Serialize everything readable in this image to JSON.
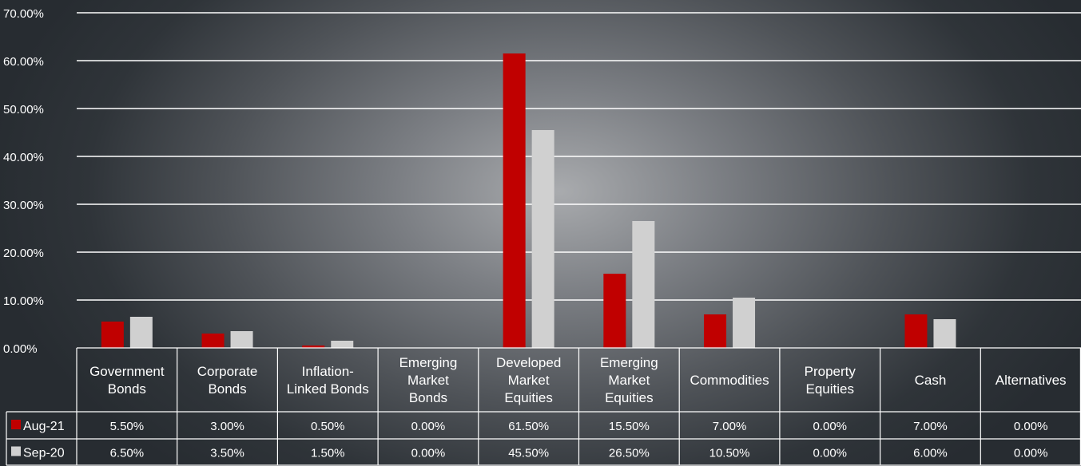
{
  "colors": {
    "Aug-21": "#c00000",
    "Sep-20": "#d0d0d0",
    "grid": "#ffffff",
    "text": "#ffffff"
  },
  "chart_data": {
    "type": "bar",
    "categories": [
      [
        "Government",
        "Bonds"
      ],
      [
        "Corporate",
        "Bonds"
      ],
      [
        "Inflation-",
        "Linked Bonds"
      ],
      [
        "Emerging",
        "Market",
        "Bonds"
      ],
      [
        "Developed",
        "Market",
        "Equities"
      ],
      [
        "Emerging",
        "Market",
        "Equities"
      ],
      [
        "Commodities"
      ],
      [
        "Property",
        "Equities"
      ],
      [
        "Cash"
      ],
      [
        "Alternatives"
      ]
    ],
    "series": [
      {
        "name": "Aug-21",
        "values": [
          5.5,
          3.0,
          0.5,
          0.0,
          61.5,
          15.5,
          7.0,
          0.0,
          7.0,
          0.0
        ],
        "labels": [
          "5.50%",
          "3.00%",
          "0.50%",
          "0.00%",
          "61.50%",
          "15.50%",
          "7.00%",
          "0.00%",
          "7.00%",
          "0.00%"
        ]
      },
      {
        "name": "Sep-20",
        "values": [
          6.5,
          3.5,
          1.5,
          0.0,
          45.5,
          26.5,
          10.5,
          0.0,
          6.0,
          0.0
        ],
        "labels": [
          "6.50%",
          "3.50%",
          "1.50%",
          "0.00%",
          "45.50%",
          "26.50%",
          "10.50%",
          "0.00%",
          "6.00%",
          "0.00%"
        ]
      }
    ],
    "yticks": [
      "0.00%",
      "10.00%",
      "20.00%",
      "30.00%",
      "40.00%",
      "50.00%",
      "60.00%",
      "70.00%"
    ],
    "ylim": [
      0,
      70
    ],
    "grid": true,
    "data_table": true
  }
}
